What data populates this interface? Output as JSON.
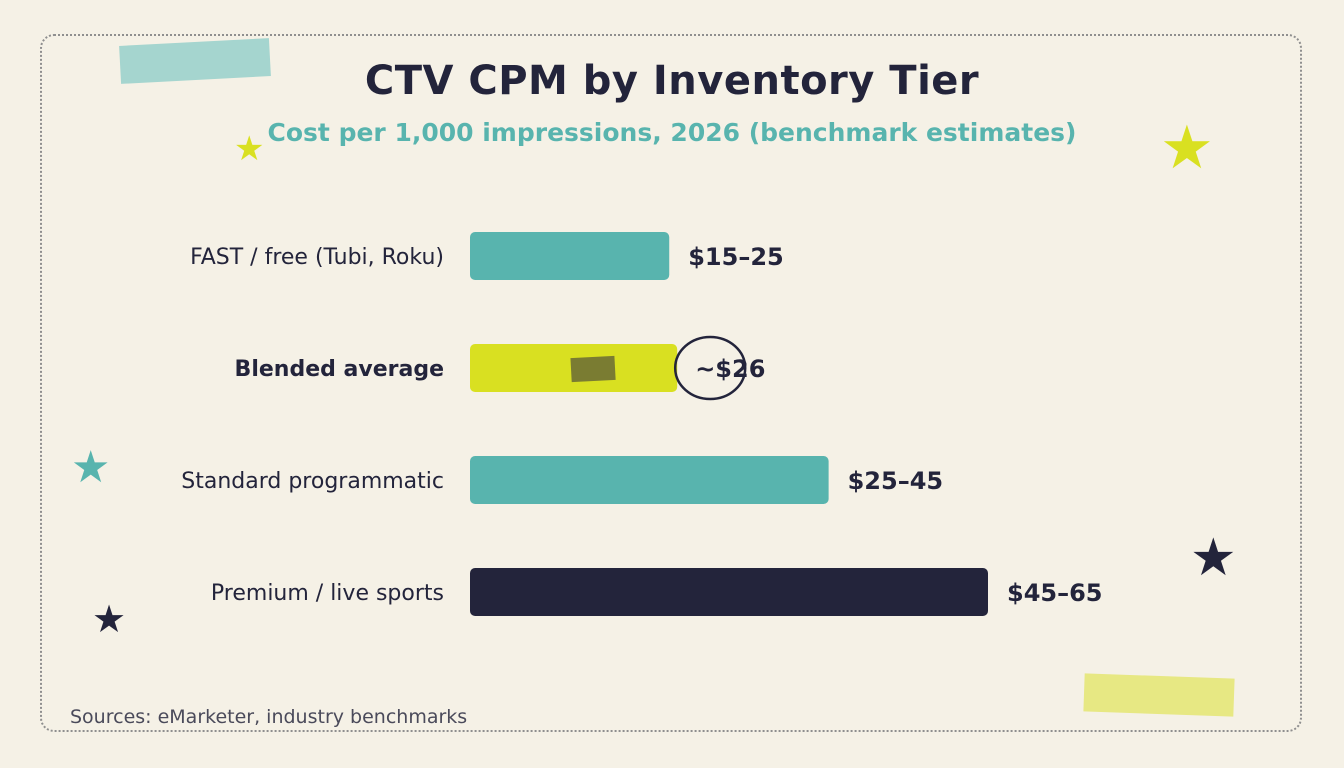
{
  "title": "CTV CPM by Inventory Tier",
  "subtitle": "Cost per 1,000 impressions, 2026 (benchmark estimates)",
  "source": "Sources: eMarketer, industry benchmarks",
  "colors": {
    "background": "#f5f1e6",
    "teal": "#58b4ae",
    "lime": "#d9e021",
    "navy": "#23243b"
  },
  "chart_data": {
    "type": "bar",
    "orientation": "horizontal",
    "title": "CTV CPM by Inventory Tier",
    "subtitle": "Cost per 1,000 impressions, 2026 (benchmark estimates)",
    "categories": [
      "FAST / free (Tubi, Roku)",
      "Blended average",
      "Standard programmatic",
      "Premium / live sports"
    ],
    "values": [
      25,
      26,
      45,
      65
    ],
    "labels": [
      "$15–25",
      "~$26",
      "$25–45",
      "$45–65"
    ],
    "bar_colors": [
      "#58b4ae",
      "#d9e021",
      "#58b4ae",
      "#23243b"
    ],
    "highlighted_category": "Blended average",
    "xlim": [
      0,
      65
    ],
    "grid": false,
    "legend": "none"
  }
}
